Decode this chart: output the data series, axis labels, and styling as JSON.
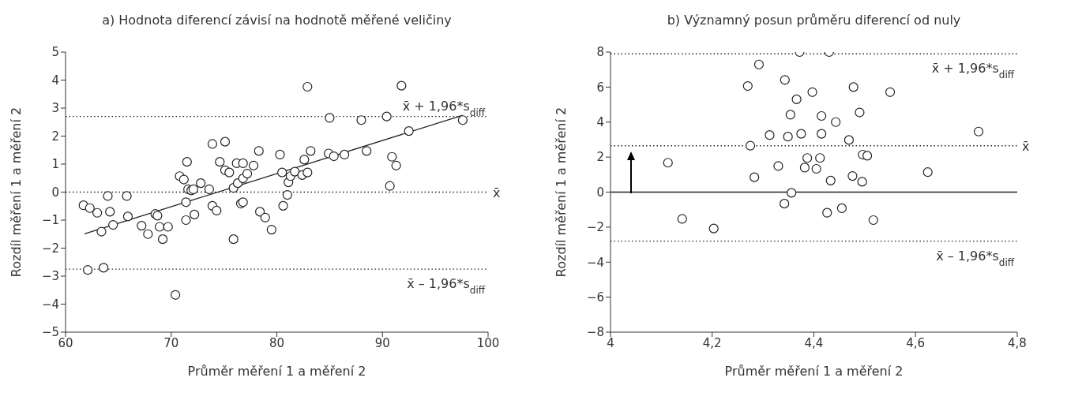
{
  "chart_data": [
    {
      "type": "scatter",
      "title": "a) Hodnota diferencí závisí na hodnotě měřené veličiny",
      "xlabel": "Průměr měření 1 a měření 2",
      "ylabel": "Rozdíl měření 1 a měření 2",
      "xlim": [
        60,
        100
      ],
      "xticks": [
        60,
        70,
        80,
        90,
        100
      ],
      "ylim": [
        -5,
        5
      ],
      "yticks": [
        {
          "value": -5,
          "label": "−5"
        },
        {
          "value": -4,
          "label": "−4"
        },
        {
          "value": -3,
          "label": "−3"
        },
        {
          "value": -2,
          "label": "−2"
        },
        {
          "value": -1,
          "label": "−1"
        },
        0,
        1,
        2,
        3,
        4,
        5
      ],
      "marker": "circle",
      "series": [
        {
          "color": "#222222",
          "x": [
            61.7,
            62.3,
            63.0,
            62.1,
            63.6,
            63.4,
            64.0,
            64.2,
            64.5,
            65.8,
            65.9,
            67.2,
            67.8,
            68.5,
            68.7,
            68.9,
            69.2,
            69.7,
            70.4,
            70.8,
            71.2,
            71.5,
            71.4,
            71.4,
            71.6,
            71.9,
            72.1,
            72.2,
            72.8,
            73.6,
            73.9,
            73.9,
            74.3,
            74.6,
            75.1,
            75.1,
            75.5,
            75.9,
            75.9,
            76.2,
            76.3,
            76.6,
            76.8,
            76.8,
            76.8,
            77.2,
            77.8,
            78.3,
            78.4,
            78.9,
            79.5,
            80.3,
            80.5,
            80.6,
            81.0,
            81.1,
            81.3,
            81.7,
            82.4,
            82.6,
            82.9,
            82.9,
            83.2,
            84.9,
            85.0,
            85.4,
            86.4,
            88.0,
            88.5,
            90.4,
            90.7,
            90.9,
            91.3,
            91.8,
            92.5,
            97.6
          ],
          "values": [
            -0.47,
            -0.57,
            -0.74,
            -2.78,
            -2.7,
            -1.41,
            -0.14,
            -0.7,
            -1.17,
            -0.14,
            -0.87,
            -1.2,
            -1.5,
            -0.78,
            -0.84,
            -1.24,
            -1.68,
            -1.24,
            -3.67,
            0.57,
            0.45,
            1.08,
            -0.36,
            -1.0,
            0.1,
            0.06,
            0.1,
            -0.8,
            0.32,
            0.1,
            1.72,
            -0.49,
            -0.66,
            1.08,
            1.8,
            0.78,
            0.7,
            0.15,
            -1.68,
            1.03,
            0.32,
            -0.41,
            -0.36,
            0.49,
            1.03,
            0.66,
            0.95,
            1.47,
            -0.7,
            -0.91,
            -1.34,
            1.34,
            0.7,
            -0.49,
            -0.1,
            0.35,
            0.57,
            0.73,
            0.61,
            1.16,
            3.76,
            0.7,
            1.47,
            1.38,
            2.65,
            1.28,
            1.34,
            2.57,
            1.47,
            2.7,
            0.22,
            1.26,
            0.95,
            3.8,
            2.18,
            2.57
          ]
        },
        {
          "type": "line",
          "color": "#222222",
          "marker": "none",
          "line_style": "solid",
          "x": [
            61.8,
            97.6
          ],
          "values": [
            -1.49,
            2.74
          ]
        }
      ],
      "ref_lines": [
        {
          "axis": "y",
          "value": 2.7,
          "label": "x̄ + 1,96*s$_{diff}$",
          "color": "#222222",
          "line_style": "dotted"
        },
        {
          "axis": "y",
          "value": 0,
          "label": "x̄",
          "color": "#222222",
          "line_style": "dotted"
        },
        {
          "axis": "y",
          "value": -2.75,
          "label": "x̄ – 1,96*s$_{diff}$",
          "color": "#222222",
          "line_style": "dotted"
        }
      ]
    },
    {
      "type": "scatter",
      "title": "b) Významný posun průměru diferencí od nuly",
      "xlabel": "Průměr  měření 1 a měření 2",
      "ylabel": "Rozdíl měření 1 a měření 2",
      "xlim": [
        4,
        4.8
      ],
      "xticks": [
        4,
        {
          "value": 4.2,
          "label": "4,2"
        },
        {
          "value": 4.4,
          "label": "4,4"
        },
        {
          "value": 4.6,
          "label": "4,6"
        },
        {
          "value": 4.8,
          "label": "4,8"
        }
      ],
      "ylim": [
        -8,
        8
      ],
      "yticks": [
        {
          "value": -8,
          "label": "−8"
        },
        {
          "value": -6,
          "label": "−6"
        },
        {
          "value": -4,
          "label": "−4"
        },
        {
          "value": -2,
          "label": "−2"
        },
        0,
        2,
        4,
        6,
        8
      ],
      "marker": "circle",
      "series": [
        {
          "color": "#222222",
          "x": [
            4.113,
            4.141,
            4.203,
            4.27,
            4.275,
            4.283,
            4.292,
            4.313,
            4.33,
            4.342,
            4.343,
            4.349,
            4.354,
            4.356,
            4.366,
            4.372,
            4.375,
            4.382,
            4.387,
            4.397,
            4.405,
            4.412,
            4.415,
            4.415,
            4.426,
            4.43,
            4.433,
            4.443,
            4.455,
            4.469,
            4.476,
            4.478,
            4.49,
            4.495,
            4.496,
            4.505,
            4.517,
            4.55,
            4.624,
            4.724
          ],
          "values": [
            1.68,
            -1.53,
            -2.08,
            6.06,
            2.65,
            0.85,
            7.29,
            3.26,
            1.49,
            -0.66,
            6.41,
            3.17,
            4.42,
            -0.04,
            5.3,
            8.0,
            3.33,
            1.4,
            1.95,
            5.71,
            1.33,
            1.95,
            4.35,
            3.33,
            -1.18,
            8.0,
            0.66,
            4.0,
            -0.92,
            2.98,
            0.92,
            6.0,
            4.55,
            0.59,
            2.14,
            2.08,
            -1.6,
            5.71,
            1.14,
            3.46
          ]
        }
      ],
      "ref_lines": [
        {
          "axis": "y",
          "value": 7.9,
          "label": "x̄ + 1,96*s$_{diff}$",
          "color": "#222222",
          "line_style": "dotted"
        },
        {
          "axis": "y",
          "value": 2.65,
          "label": "x̄",
          "color": "#222222",
          "line_style": "dotted"
        },
        {
          "axis": "y",
          "value": -2.8,
          "label": "x̄ – 1,96*s$_{diff}$",
          "color": "#222222",
          "line_style": "dotted"
        },
        {
          "axis": "y",
          "value": 0,
          "color": "#222222",
          "line_style": "solid"
        }
      ]
    }
  ]
}
